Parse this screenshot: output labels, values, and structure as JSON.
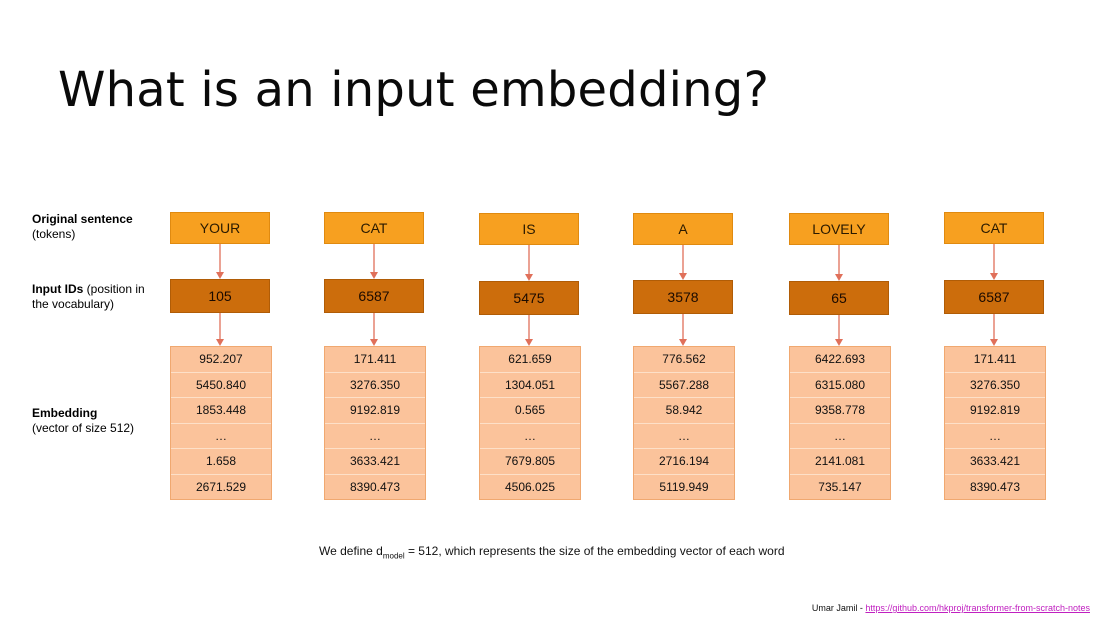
{
  "title": "What is an input embedding?",
  "labels": {
    "sentence_bold": "Original sentence",
    "sentence_sub": "(tokens)",
    "ids_bold": "Input IDs",
    "ids_sub": " (position in the vocabulary)",
    "emb_bold": "Embedding",
    "emb_sub": "(vector of size 512)"
  },
  "columns": [
    {
      "token": "YOUR",
      "id": "105",
      "embedding": [
        "952.207",
        "5450.840",
        "1853.448",
        "…",
        "1.658",
        "2671.529"
      ]
    },
    {
      "token": "CAT",
      "id": "6587",
      "embedding": [
        "171.411",
        "3276.350",
        "9192.819",
        "…",
        "3633.421",
        "8390.473"
      ]
    },
    {
      "token": "IS",
      "id": "5475",
      "embedding": [
        "621.659",
        "1304.051",
        "0.565",
        "…",
        "7679.805",
        "4506.025"
      ]
    },
    {
      "token": "A",
      "id": "3578",
      "embedding": [
        "776.562",
        "5567.288",
        "58.942",
        "…",
        "2716.194",
        "5119.949"
      ]
    },
    {
      "token": "LOVELY",
      "id": "65",
      "embedding": [
        "6422.693",
        "6315.080",
        "9358.778",
        "…",
        "2141.081",
        "735.147"
      ]
    },
    {
      "token": "CAT",
      "id": "6587",
      "embedding": [
        "171.411",
        "3276.350",
        "9192.819",
        "…",
        "3633.421",
        "8390.473"
      ]
    }
  ],
  "note": {
    "prefix": "We define d",
    "sub": "model",
    "suffix": " = 512, which represents the size of the embedding vector of each word"
  },
  "footer": {
    "author": "Umar Jamil - ",
    "link": "https://github.com/hkproj/transformer-from-scratch-notes"
  },
  "colors": {
    "token_fill": "#f7a020",
    "id_fill": "#cc6d0c",
    "embedding_fill": "#fbc39b",
    "arrow": "#e0705a"
  }
}
